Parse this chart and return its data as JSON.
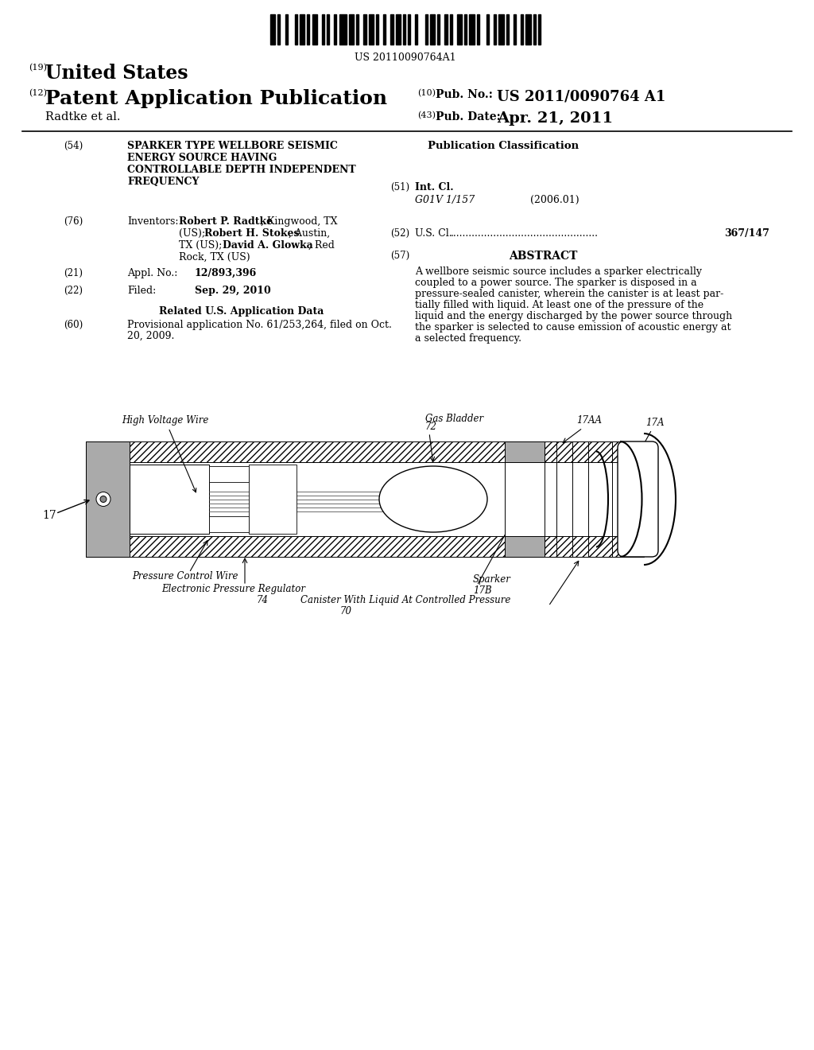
{
  "bg_color": "#ffffff",
  "barcode_number": "US 20110090764A1",
  "country": "United States",
  "pub_type": "Patent Application Publication",
  "assignee": "Radtke et al.",
  "pub_no_label": "Pub. No.:",
  "pub_no": "US 2011/0090764 A1",
  "pub_date_label": "Pub. Date:",
  "pub_date": "Apr. 21, 2011",
  "field54_label": "(54)",
  "field54_line1": "SPARKER TYPE WELLBORE SEISMIC",
  "field54_line2": "ENERGY SOURCE HAVING",
  "field54_line3": "CONTROLLABLE DEPTH INDEPENDENT",
  "field54_line4": "FREQUENCY",
  "pub_class_label": "Publication Classification",
  "field51_label": "(51)",
  "int_cl_label": "Int. Cl.",
  "int_cl_value": "G01V 1/157",
  "int_cl_year": "(2006.01)",
  "field76_label": "(76)",
  "inventors_label": "Inventors:",
  "field52_label": "(52)",
  "us_cl_label": "U.S. Cl.",
  "us_cl_value": "367/147",
  "field57_label": "(57)",
  "abstract_label": "ABSTRACT",
  "abstract_lines": [
    "A wellbore seismic source includes a sparker electrically",
    "coupled to a power source. The sparker is disposed in a",
    "pressure-sealed canister, wherein the canister is at least par-",
    "tially filled with liquid. At least one of the pressure of the",
    "liquid and the energy discharged by the power source through",
    "the sparker is selected to cause emission of acoustic energy at",
    "a selected frequency."
  ],
  "field21_label": "(21)",
  "appl_no_label": "Appl. No.:",
  "appl_no_value": "12/893,396",
  "field22_label": "(22)",
  "filed_label": "Filed:",
  "filed_value": "Sep. 29, 2010",
  "related_data_label": "Related U.S. Application Data",
  "field60_label": "(60)",
  "provisional_line1": "Provisional application No. 61/253,264, filed on Oct.",
  "provisional_line2": "20, 2009.",
  "diagram_label_17": "17",
  "diagram_label_hv": "High Voltage Wire",
  "diagram_label_gb_line1": "Gas Bladder",
  "diagram_label_gb_line2": "72",
  "diagram_label_17aa": "17AA",
  "diagram_label_17a": "17A",
  "diagram_label_pcw": "Pressure Control Wire",
  "diagram_label_epr_line1": "Electronic Pressure Regulator",
  "diagram_label_epr_line2": "74",
  "diagram_label_sparker_line1": "Sparker",
  "diagram_label_sparker_line2": "17B",
  "diagram_label_canister_line1": "Canister With Liquid At Controlled Pressure",
  "diagram_label_canister_line2": "70"
}
